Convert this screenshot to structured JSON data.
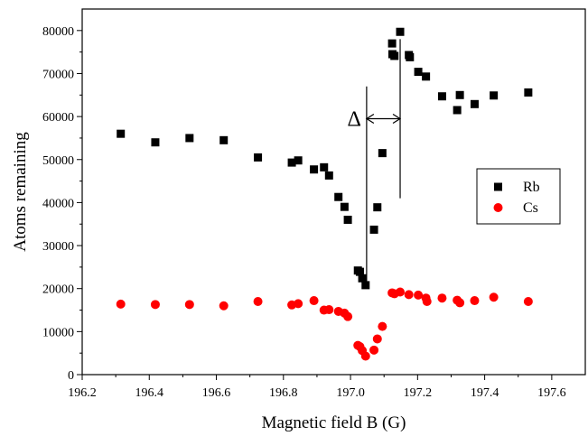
{
  "chart_data": {
    "type": "scatter",
    "xlabel": "Magnetic field B (G)",
    "ylabel": "Atoms remaining",
    "xlim": [
      196.2,
      197.7
    ],
    "ylim": [
      0,
      85000
    ],
    "xticks": [
      196.2,
      196.4,
      196.6,
      196.8,
      197.0,
      197.2,
      197.4,
      197.6
    ],
    "xtick_labels": [
      "196.2",
      "196.4",
      "196.6",
      "196.8",
      "197.0",
      "197.2",
      "197.4",
      "197.6"
    ],
    "yticks": [
      0,
      10000,
      20000,
      30000,
      40000,
      50000,
      60000,
      70000,
      80000
    ],
    "ytick_labels": [
      "0",
      "10000",
      "20000",
      "30000",
      "40000",
      "50000",
      "60000",
      "70000",
      "80000"
    ],
    "grid": false,
    "legend_position": "right",
    "annotation": {
      "label": "Δ",
      "x_start": 197.048,
      "x_end": 197.148,
      "line1_range": [
        20000,
        67000
      ],
      "line2_range": [
        41000,
        78000
      ],
      "arrow_y": 59500
    },
    "series": [
      {
        "name": "Rb",
        "marker": "square",
        "color": "#000000",
        "points": [
          [
            196.315,
            56000
          ],
          [
            196.418,
            54000
          ],
          [
            196.52,
            55000
          ],
          [
            196.622,
            54500
          ],
          [
            196.724,
            50500
          ],
          [
            196.825,
            49300
          ],
          [
            196.844,
            49800
          ],
          [
            196.891,
            47700
          ],
          [
            196.921,
            48200
          ],
          [
            196.936,
            46300
          ],
          [
            196.964,
            41300
          ],
          [
            196.982,
            39000
          ],
          [
            196.992,
            36000
          ],
          [
            197.022,
            24200
          ],
          [
            197.028,
            23900
          ],
          [
            197.035,
            22400
          ],
          [
            197.045,
            20800
          ],
          [
            197.07,
            33700
          ],
          [
            197.08,
            38900
          ],
          [
            197.095,
            51500
          ],
          [
            197.124,
            77000
          ],
          [
            197.125,
            74500
          ],
          [
            197.131,
            74100
          ],
          [
            197.148,
            79700
          ],
          [
            197.174,
            74300
          ],
          [
            197.177,
            73800
          ],
          [
            197.202,
            70400
          ],
          [
            197.225,
            69300
          ],
          [
            197.273,
            64700
          ],
          [
            197.318,
            61500
          ],
          [
            197.326,
            65000
          ],
          [
            197.37,
            62900
          ],
          [
            197.427,
            64900
          ],
          [
            197.53,
            65600
          ]
        ]
      },
      {
        "name": "Cs",
        "marker": "circle",
        "color": "#ff0000",
        "points": [
          [
            196.315,
            16400
          ],
          [
            196.418,
            16300
          ],
          [
            196.52,
            16300
          ],
          [
            196.622,
            16000
          ],
          [
            196.724,
            17000
          ],
          [
            196.825,
            16200
          ],
          [
            196.844,
            16500
          ],
          [
            196.891,
            17200
          ],
          [
            196.921,
            15000
          ],
          [
            196.936,
            15100
          ],
          [
            196.964,
            14700
          ],
          [
            196.982,
            14300
          ],
          [
            196.992,
            13500
          ],
          [
            197.022,
            6800
          ],
          [
            197.028,
            6500
          ],
          [
            197.035,
            5600
          ],
          [
            197.045,
            4300
          ],
          [
            197.07,
            5700
          ],
          [
            197.08,
            8300
          ],
          [
            197.095,
            11200
          ],
          [
            197.124,
            19000
          ],
          [
            197.131,
            18800
          ],
          [
            197.148,
            19200
          ],
          [
            197.174,
            18600
          ],
          [
            197.202,
            18500
          ],
          [
            197.225,
            17800
          ],
          [
            197.228,
            17000
          ],
          [
            197.273,
            17800
          ],
          [
            197.318,
            17300
          ],
          [
            197.326,
            16700
          ],
          [
            197.37,
            17200
          ],
          [
            197.427,
            18000
          ],
          [
            197.53,
            17000
          ]
        ]
      }
    ]
  }
}
